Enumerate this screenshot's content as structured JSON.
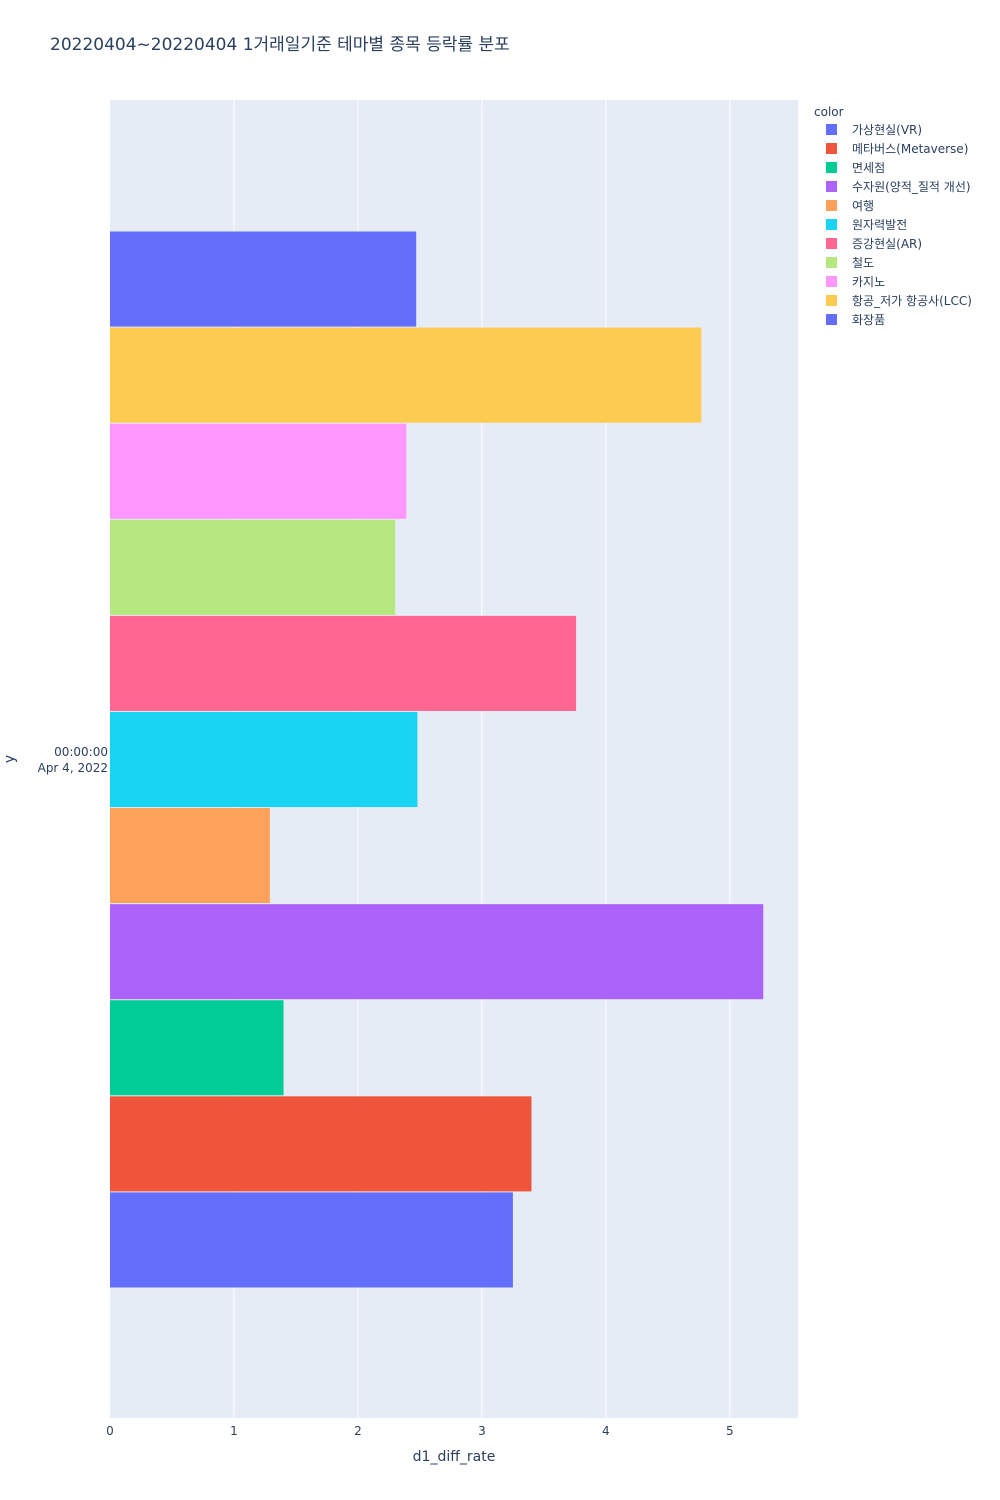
{
  "chart_data": {
    "type": "bar",
    "orientation": "horizontal",
    "barmode": "group",
    "title": "20220404~20220404 1거래일기준 테마별 종목 등락률 분포",
    "xlabel": "d1_diff_rate",
    "ylabel": "y",
    "xlim": [
      0,
      5.55
    ],
    "x_ticks": [
      "0",
      "1",
      "2",
      "3",
      "4",
      "5"
    ],
    "y_category": "2022-04-04 00:00:00",
    "y_tick_lines": [
      "00:00:00",
      "Apr 4, 2022"
    ],
    "grid": true,
    "legend_title": "color",
    "legend_position": "top-right",
    "series": [
      {
        "name": "가상현실(VR)",
        "value": 3.25,
        "color": "#636efa"
      },
      {
        "name": "메타버스(Metaverse)",
        "value": 3.4,
        "color": "#EF553B"
      },
      {
        "name": "면세점",
        "value": 1.4,
        "color": "#00cc96"
      },
      {
        "name": "수자원(양적_질적 개선)",
        "value": 5.27,
        "color": "#ab63fa"
      },
      {
        "name": "여행",
        "value": 1.29,
        "color": "#FFA15A"
      },
      {
        "name": "원자력발전",
        "value": 2.48,
        "color": "#19d3f3"
      },
      {
        "name": "증강현실(AR)",
        "value": 3.76,
        "color": "#FF6692"
      },
      {
        "name": "철도",
        "value": 2.3,
        "color": "#B6E880"
      },
      {
        "name": "카지노",
        "value": 2.39,
        "color": "#FF97FF"
      },
      {
        "name": "항공_저가 항공사(LCC)",
        "value": 4.77,
        "color": "#FECB52"
      },
      {
        "name": "화장품",
        "value": 2.47,
        "color": "#636efa"
      }
    ]
  }
}
